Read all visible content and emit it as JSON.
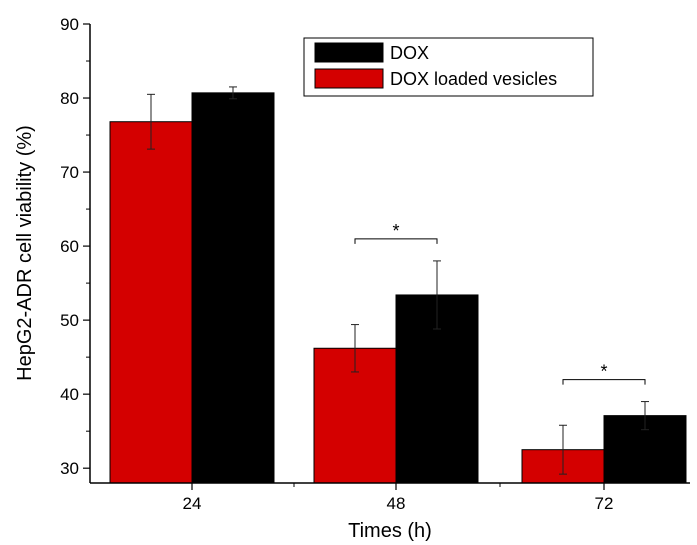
{
  "chart_data": {
    "type": "bar",
    "categories": [
      "24",
      "48",
      "72"
    ],
    "series": [
      {
        "name": "DOX loaded vesicles",
        "color": "#d40000",
        "values": [
          76.8,
          46.2,
          32.5
        ],
        "errors": [
          3.7,
          3.2,
          3.3
        ]
      },
      {
        "name": "DOX",
        "color": "#000000",
        "values": [
          80.7,
          53.4,
          37.1
        ],
        "errors": [
          0.8,
          4.6,
          1.9
        ]
      }
    ],
    "xlabel": "Times (h)",
    "ylabel": "HepG2-ADR cell viability (%)",
    "ylim": [
      28,
      90
    ],
    "yticks": [
      30,
      40,
      50,
      60,
      70,
      80,
      90
    ],
    "legend_position": "top-right",
    "significance": [
      {
        "category": "48",
        "label": "*"
      },
      {
        "category": "72",
        "label": "*"
      }
    ],
    "grid": false
  }
}
